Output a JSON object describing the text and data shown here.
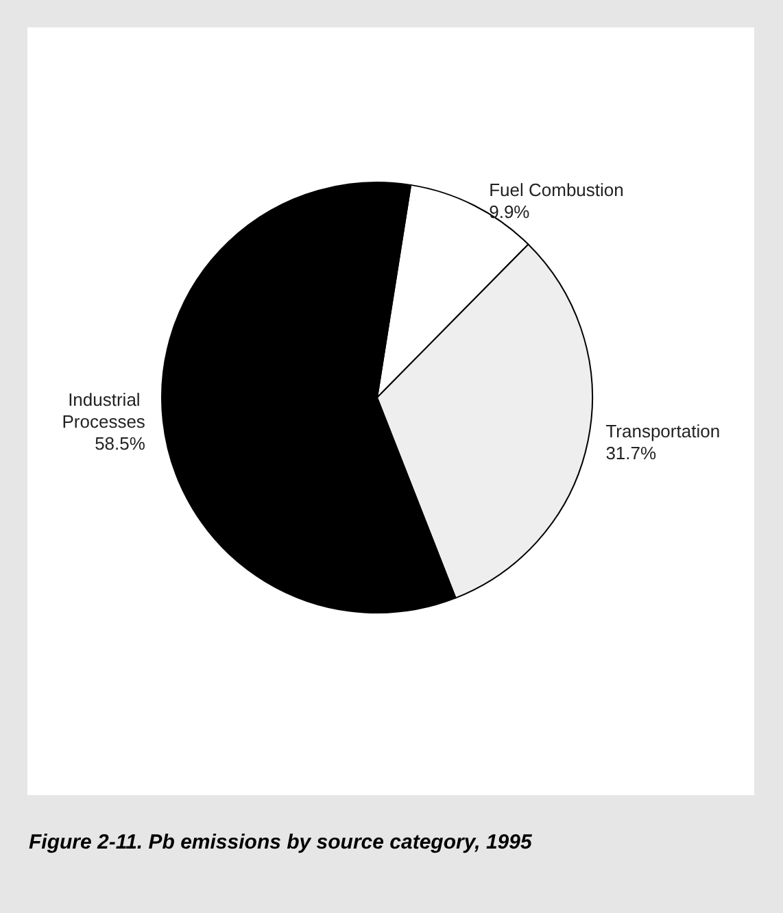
{
  "chart_data": {
    "type": "pie",
    "title": "Figure 2-11. Pb emissions by source category, 1995",
    "categories": [
      "Fuel Combustion",
      "Transportation",
      "Industrial Processes"
    ],
    "values": [
      9.9,
      31.7,
      58.5
    ],
    "value_labels": [
      "9.9%",
      "31.7%",
      "58.5%"
    ],
    "colors": [
      "#ffffff",
      "#eeeeee",
      "#000000"
    ],
    "legend": false
  }
}
